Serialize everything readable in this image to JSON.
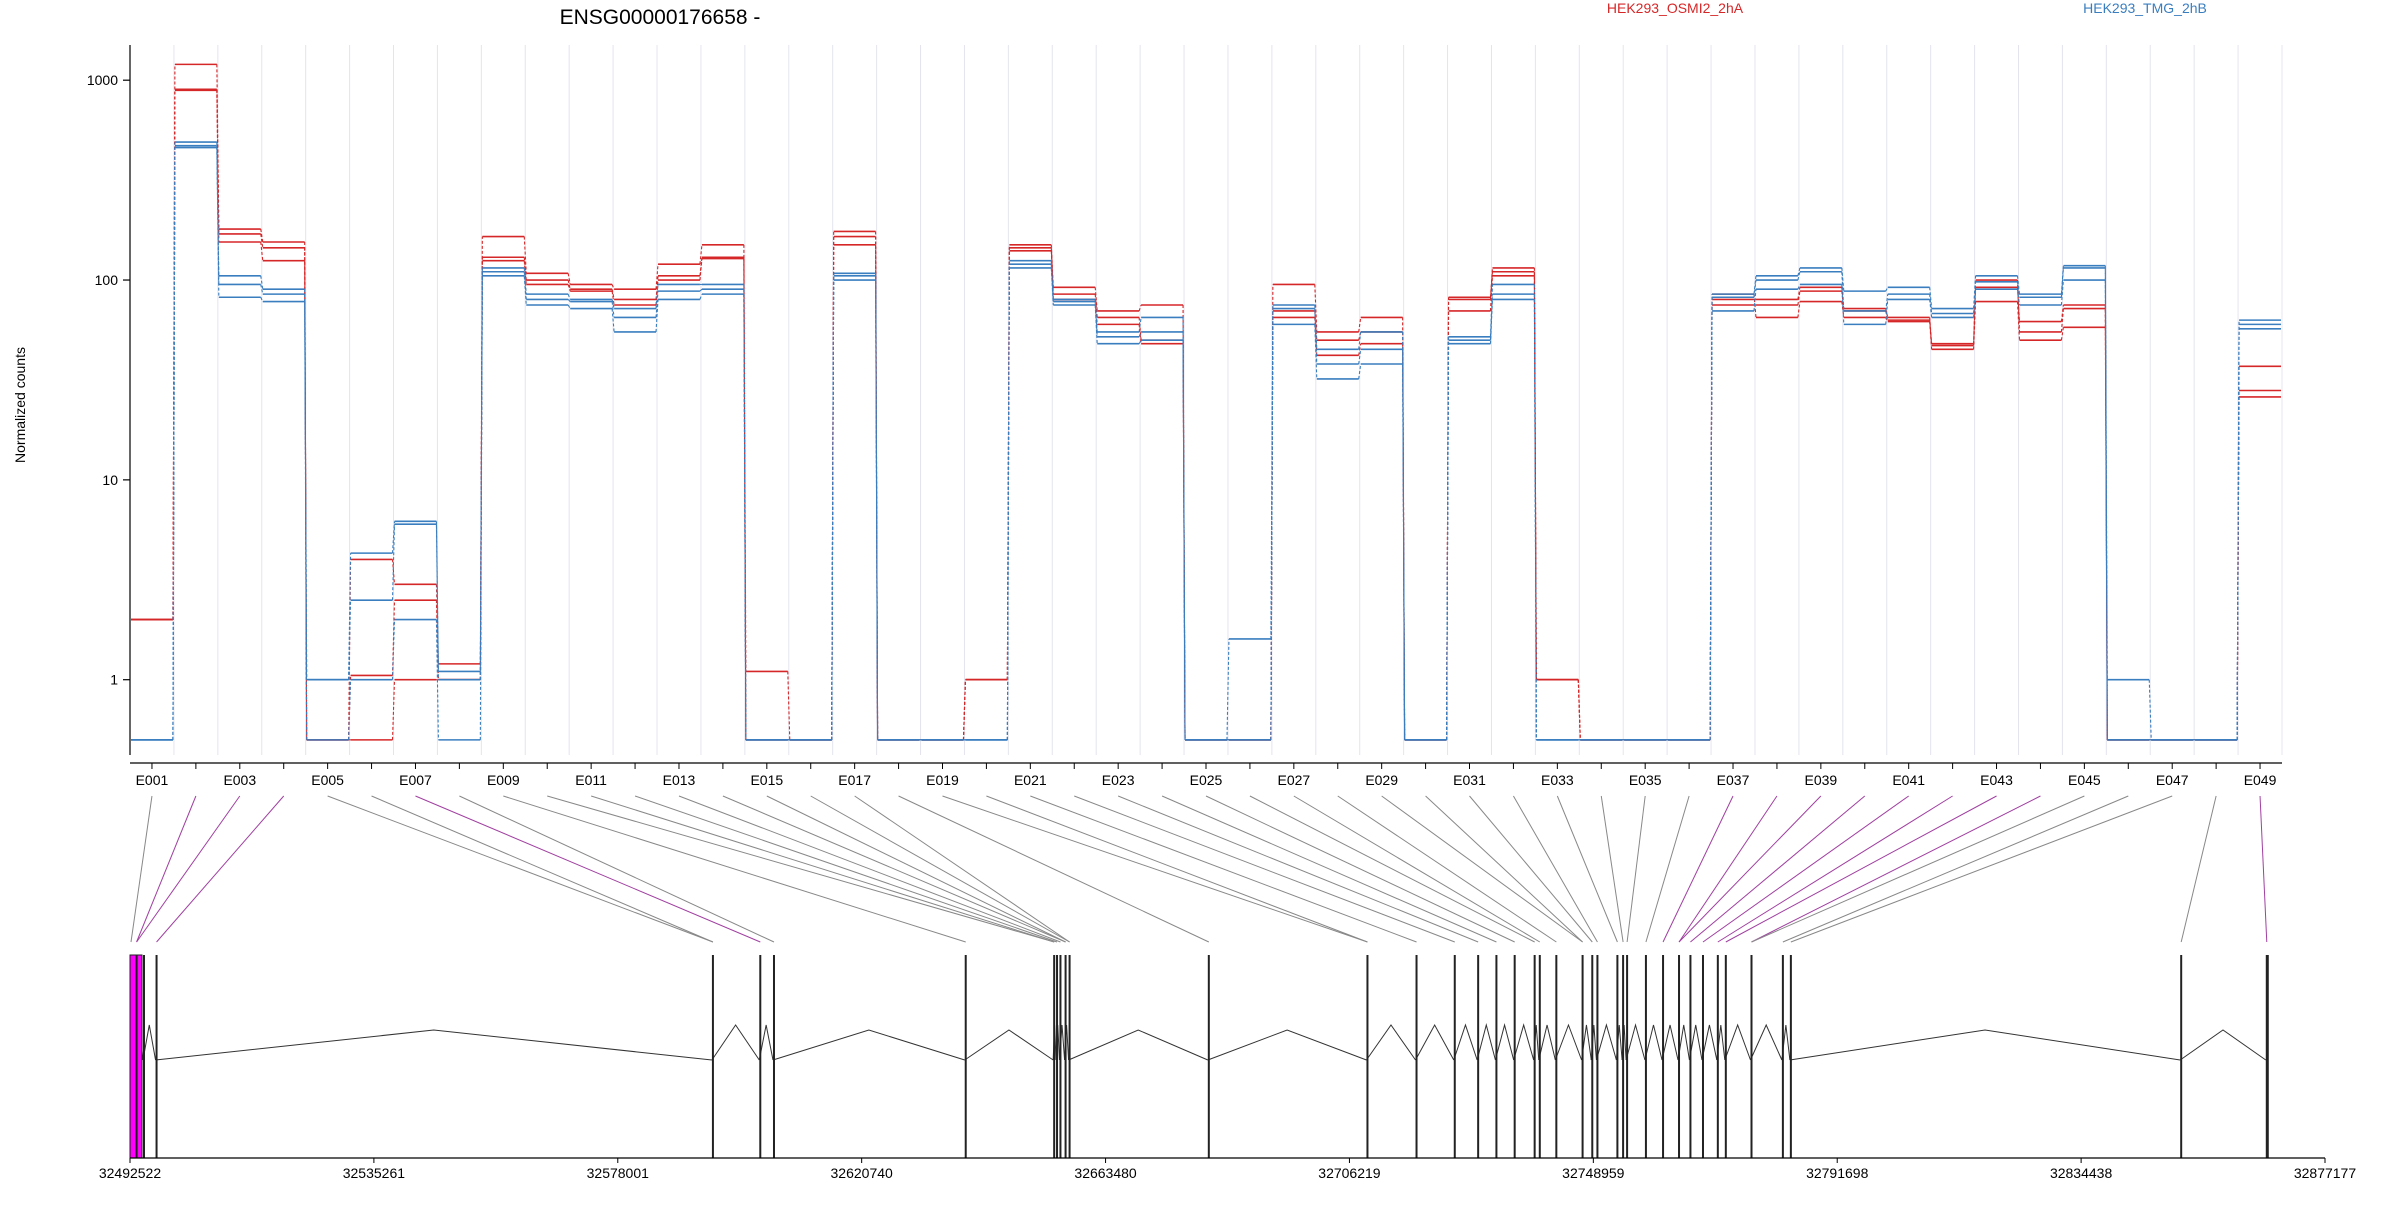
{
  "chart_data": {
    "type": "line",
    "title": "ENSG00000176658 -",
    "ylabel": "Normalized counts",
    "yscale": "log",
    "ylim": [
      0.42,
      1500
    ],
    "yticks": [
      1,
      10,
      100,
      1000
    ],
    "ytick_labels": [
      "1",
      "10",
      "100",
      "1000"
    ],
    "legend_placement": "top",
    "colors": {
      "condition_a": "#d62728",
      "condition_b": "#3a7ebf",
      "spliced_exon": "#ff00ff",
      "connector": "#888888",
      "tested_connector": "#a040a0"
    },
    "conditions": [
      {
        "name": "HEK293_OSMI2_2hA",
        "color": "#d62728"
      },
      {
        "name": "HEK293_TMG_2hB",
        "color": "#3a7ebf"
      }
    ],
    "exons": [
      "E001",
      "E002",
      "E003",
      "E004",
      "E005",
      "E006",
      "E007",
      "E008",
      "E009",
      "E010",
      "E011",
      "E012",
      "E013",
      "E014",
      "E015",
      "E016",
      "E017",
      "E018",
      "E019",
      "E020",
      "E021",
      "E022",
      "E023",
      "E024",
      "E025",
      "E026",
      "E027",
      "E028",
      "E029",
      "E030",
      "E031",
      "E032",
      "E033",
      "E034",
      "E035",
      "E036",
      "E037",
      "E038",
      "E039",
      "E040",
      "E041",
      "E042",
      "E043",
      "E044",
      "E045",
      "E046",
      "E047",
      "E048",
      "E049"
    ],
    "exon_tick_labels": [
      "E001",
      "E003",
      "E005",
      "E007",
      "E009",
      "E011",
      "E013",
      "E015",
      "E017",
      "E019",
      "E021",
      "E023",
      "E025",
      "E027",
      "E029",
      "E031",
      "E033",
      "E035",
      "E037",
      "E039",
      "E041",
      "E043",
      "E045",
      "E047",
      "E049"
    ],
    "series": [
      {
        "name": "HEK293_OSMI2_2hA",
        "condition": "HEK293_OSMI2_2hA",
        "values": [
          2,
          1200,
          180,
          155,
          0.5,
          4,
          3,
          1.2,
          165,
          108,
          95,
          90,
          120,
          150,
          1.1,
          0.5,
          175,
          0.5,
          0.5,
          1,
          150,
          92,
          70,
          75,
          0.5,
          0.5,
          95,
          55,
          65,
          0.5,
          82,
          115,
          1,
          0.5,
          0.5,
          0.5,
          85,
          65,
          78,
          65,
          62,
          45,
          78,
          50,
          58,
          0.5,
          0.5,
          0.5,
          37
        ]
      },
      {
        "name": "HEK293_OSMI2_2hA",
        "condition": "HEK293_OSMI2_2hA",
        "values": [
          2,
          900,
          170,
          145,
          0.5,
          1.05,
          2.5,
          1,
          130,
          100,
          90,
          80,
          105,
          130,
          0.5,
          0.5,
          165,
          0.5,
          0.5,
          1,
          145,
          85,
          65,
          50,
          0.5,
          0.5,
          70,
          50,
          55,
          0.5,
          80,
          110,
          1,
          0.5,
          0.5,
          0.5,
          80,
          80,
          92,
          72,
          65,
          48,
          100,
          55,
          72,
          0.5,
          0.5,
          0.5,
          28
        ]
      },
      {
        "name": "HEK293_OSMI2_2hA",
        "condition": "HEK293_OSMI2_2hA",
        "values": [
          2,
          890,
          155,
          125,
          0.5,
          0.5,
          1,
          1,
          125,
          95,
          88,
          75,
          100,
          128,
          0.5,
          0.5,
          150,
          0.5,
          0.5,
          1,
          140,
          80,
          60,
          48,
          0.5,
          0.5,
          65,
          42,
          48,
          0.5,
          70,
          105,
          1,
          0.5,
          0.5,
          0.5,
          75,
          75,
          88,
          70,
          63,
          47,
          92,
          62,
          75,
          0.5,
          0.5,
          0.5,
          26
        ]
      },
      {
        "name": "HEK293_TMG_2hB",
        "condition": "HEK293_TMG_2hB",
        "values": [
          0.5,
          490,
          105,
          90,
          1,
          4.3,
          6.2,
          1.1,
          115,
          85,
          80,
          72,
          95,
          95,
          0.5,
          0.5,
          108,
          0.5,
          0.5,
          0.5,
          125,
          80,
          55,
          65,
          0.5,
          1.6,
          75,
          45,
          55,
          0.5,
          52,
          95,
          0.5,
          0.5,
          0.5,
          0.5,
          85,
          105,
          115,
          88,
          92,
          72,
          105,
          85,
          118,
          1,
          0.5,
          0.5,
          63
        ]
      },
      {
        "name": "HEK293_TMG_2hB",
        "condition": "HEK293_TMG_2hB",
        "values": [
          0.5,
          470,
          95,
          85,
          1,
          2.5,
          6,
          1,
          110,
          80,
          78,
          65,
          88,
          90,
          0.5,
          0.5,
          105,
          0.5,
          0.5,
          0.5,
          120,
          78,
          52,
          55,
          0.5,
          0.5,
          72,
          38,
          45,
          0.5,
          50,
          85,
          0.5,
          0.5,
          0.5,
          0.5,
          82,
          100,
          110,
          70,
          85,
          68,
          98,
          82,
          115,
          0.5,
          0.5,
          0.5,
          60
        ]
      },
      {
        "name": "HEK293_TMG_2hB",
        "condition": "HEK293_TMG_2hB",
        "values": [
          0.5,
          460,
          82,
          78,
          0.5,
          1,
          2,
          0.5,
          105,
          75,
          72,
          55,
          80,
          85,
          0.5,
          0.5,
          100,
          0.5,
          0.5,
          0.5,
          115,
          75,
          48,
          50,
          0.5,
          0.5,
          60,
          32,
          38,
          0.5,
          48,
          80,
          0.5,
          0.5,
          0.5,
          0.5,
          70,
          90,
          95,
          60,
          80,
          65,
          90,
          75,
          100,
          0.5,
          0.5,
          0.5,
          57
        ]
      }
    ],
    "gene_model": {
      "start": 32492522,
      "end": 32877177,
      "axis_ticks": [
        32492522,
        32535261,
        32578001,
        32620740,
        32663480,
        32706219,
        32748959,
        32791698,
        32834438,
        32877177
      ],
      "axis_tick_labels": [
        "32492522",
        "32535261",
        "32578001",
        "32620740",
        "32663480",
        "32706219",
        "32748959",
        "32791698",
        "32834438",
        "32877177"
      ],
      "exon_positions": [
        32492522,
        32493500,
        32494800,
        32497000,
        32594500,
        32602800,
        32605200,
        32638800,
        32654300,
        32654800,
        32655400,
        32656300,
        32657000,
        32681400,
        32709200,
        32717800,
        32724500,
        32728600,
        32731800,
        32735000,
        32738500,
        32739400,
        32742300,
        32746900,
        32748600,
        32749500,
        32753000,
        32754000,
        32754700,
        32758000,
        32761000,
        32763800,
        32765800,
        32768000,
        32770600,
        32772000,
        32776500,
        32782000,
        32783400,
        32851800,
        32866800
      ],
      "bin_to_exon_index": [
        0,
        1,
        1,
        3,
        4,
        4,
        5,
        6,
        7,
        8,
        8,
        9,
        10,
        11,
        11,
        12,
        12,
        13,
        14,
        14,
        15,
        16,
        17,
        18,
        19,
        20,
        21,
        22,
        23,
        23,
        24,
        25,
        26,
        27,
        28,
        29,
        30,
        31,
        31,
        32,
        33,
        34,
        35,
        36,
        36,
        37,
        38,
        39,
        40
      ],
      "highlighted_bins": [
        "E002",
        "E003",
        "E004",
        "E007",
        "E037",
        "E038",
        "E039",
        "E040",
        "E041",
        "E042",
        "E043",
        "E044",
        "E049"
      ]
    }
  }
}
